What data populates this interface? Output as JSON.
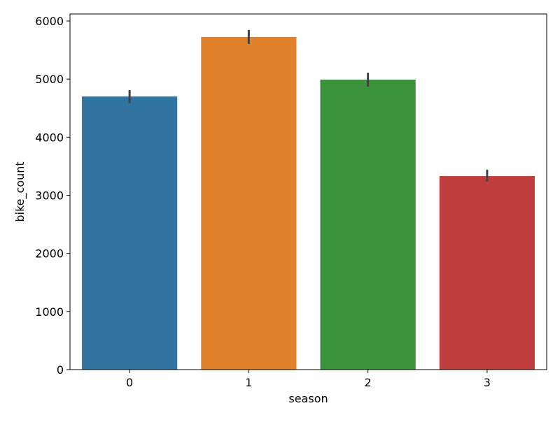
{
  "chart_data": {
    "type": "bar",
    "categories": [
      "0",
      "1",
      "2",
      "3"
    ],
    "values": [
      4700,
      5725,
      4990,
      3330
    ],
    "error_bars": [
      [
        4585,
        4810
      ],
      [
        5605,
        5845
      ],
      [
        4870,
        5110
      ],
      [
        3240,
        3440
      ]
    ],
    "colors": [
      "#3274a1",
      "#e1812c",
      "#3a923a",
      "#c03d3e"
    ],
    "error_bar_color": "#424242",
    "xlabel": "season",
    "ylabel": "bike_count",
    "yticks": [
      0,
      1000,
      2000,
      3000,
      4000,
      5000,
      6000
    ],
    "ytick_labels": [
      "0",
      "1000",
      "2000",
      "3000",
      "4000",
      "5000",
      "6000"
    ],
    "ylim": [
      0,
      6120
    ],
    "grid": false,
    "legend": "none"
  }
}
